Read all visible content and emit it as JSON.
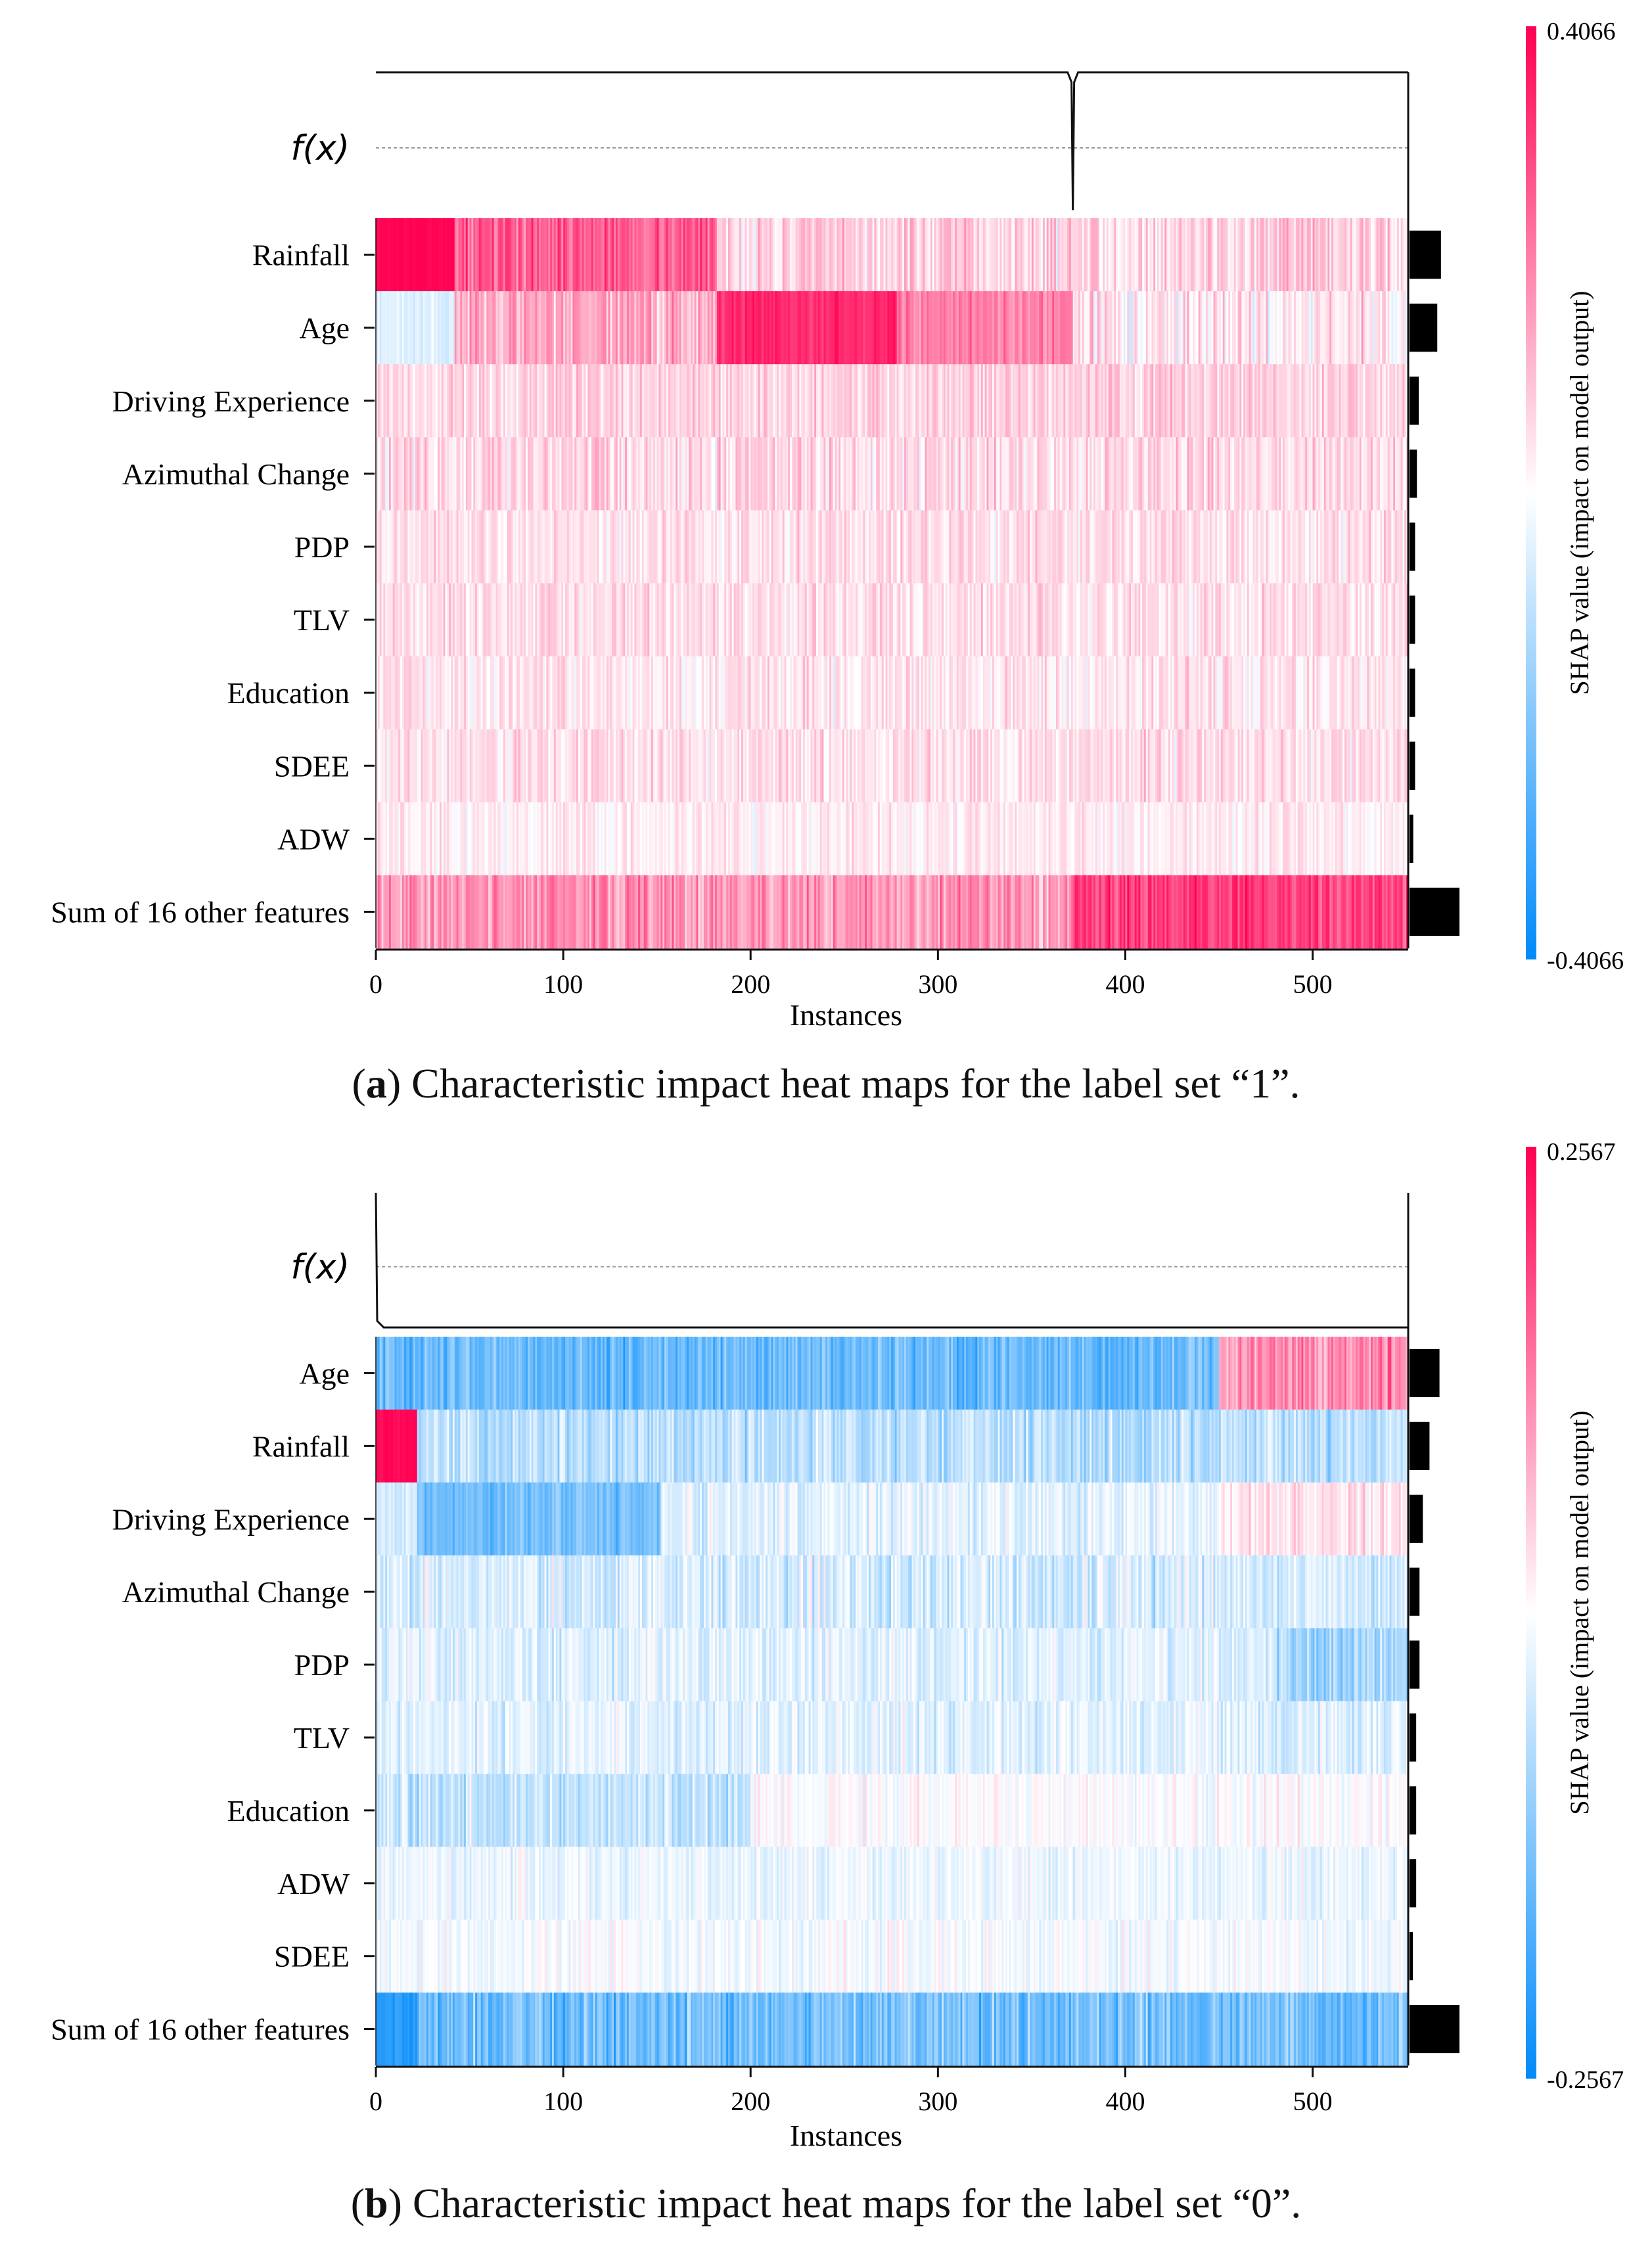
{
  "figure": {
    "captions": [
      {
        "prefix": "(",
        "letter": "a",
        "text": ") Characteristic impact heat maps for the label set “1”."
      },
      {
        "prefix": "(",
        "letter": "b",
        "text": ") Characteristic impact heat maps for the label set “0”."
      }
    ]
  },
  "chart_data": [
    {
      "type": "heatmap",
      "panel": "a",
      "fx_label": "f(x)",
      "xlabel": "Instances",
      "xticks": [
        0,
        100,
        200,
        300,
        400,
        500
      ],
      "xlim": [
        0,
        551
      ],
      "features": [
        "Rainfall",
        "Age",
        "Driving Experience",
        "Azimuthal Change",
        "PDP",
        "TLV",
        "Education",
        "SDEE",
        "ADW",
        "Sum of 16 other features"
      ],
      "mean_abs_importance": [
        0.17,
        0.15,
        0.05,
        0.04,
        0.03,
        0.03,
        0.03,
        0.03,
        0.02,
        0.27
      ],
      "colorbar": {
        "max_label": "0.4066",
        "min_label": "-0.4066",
        "vmax": 0.4066,
        "vmin": -0.4066,
        "label": "SHAP value (impact on model output)"
      },
      "fx_spike_instance": 372,
      "row_profiles": [
        {
          "feature": "Rainfall",
          "segments": [
            {
              "from": 0,
              "to": 42,
              "mean": 0.4,
              "noise": 0.01
            },
            {
              "from": 42,
              "to": 182,
              "mean": 0.26,
              "noise": 0.08
            },
            {
              "from": 182,
              "to": 551,
              "mean": 0.07,
              "noise": 0.08
            }
          ]
        },
        {
          "feature": "Age",
          "segments": [
            {
              "from": 0,
              "to": 42,
              "mean": -0.05,
              "noise": 0.03
            },
            {
              "from": 42,
              "to": 182,
              "mean": 0.14,
              "noise": 0.09
            },
            {
              "from": 182,
              "to": 278,
              "mean": 0.34,
              "noise": 0.04
            },
            {
              "from": 278,
              "to": 372,
              "mean": 0.2,
              "noise": 0.06
            },
            {
              "from": 372,
              "to": 551,
              "mean": 0.04,
              "noise": 0.09
            }
          ]
        },
        {
          "feature": "Driving Experience",
          "segments": [
            {
              "from": 0,
              "to": 551,
              "mean": 0.07,
              "noise": 0.06
            }
          ]
        },
        {
          "feature": "Azimuthal Change",
          "segments": [
            {
              "from": 0,
              "to": 551,
              "mean": 0.06,
              "noise": 0.07
            }
          ]
        },
        {
          "feature": "PDP",
          "segments": [
            {
              "from": 0,
              "to": 551,
              "mean": 0.05,
              "noise": 0.06
            }
          ]
        },
        {
          "feature": "TLV",
          "segments": [
            {
              "from": 0,
              "to": 551,
              "mean": 0.05,
              "noise": 0.06
            }
          ]
        },
        {
          "feature": "Education",
          "segments": [
            {
              "from": 0,
              "to": 551,
              "mean": 0.04,
              "noise": 0.06
            }
          ]
        },
        {
          "feature": "SDEE",
          "segments": [
            {
              "from": 0,
              "to": 551,
              "mean": 0.05,
              "noise": 0.06
            }
          ]
        },
        {
          "feature": "ADW",
          "segments": [
            {
              "from": 0,
              "to": 551,
              "mean": 0.03,
              "noise": 0.05
            }
          ]
        },
        {
          "feature": "Sum of 16 other features",
          "segments": [
            {
              "from": 0,
              "to": 372,
              "mean": 0.17,
              "noise": 0.09
            },
            {
              "from": 372,
              "to": 551,
              "mean": 0.31,
              "noise": 0.08
            }
          ]
        }
      ]
    },
    {
      "type": "heatmap",
      "panel": "b",
      "fx_label": "f(x)",
      "xlabel": "Instances",
      "xticks": [
        0,
        100,
        200,
        300,
        400,
        500
      ],
      "xlim": [
        0,
        551
      ],
      "features": [
        "Age",
        "Rainfall",
        "Driving Experience",
        "Azimuthal Change",
        "PDP",
        "TLV",
        "Education",
        "ADW",
        "SDEE",
        "Sum of 16 other features"
      ],
      "mean_abs_importance": [
        0.09,
        0.06,
        0.04,
        0.03,
        0.03,
        0.02,
        0.02,
        0.02,
        0.01,
        0.15
      ],
      "colorbar": {
        "max_label": "0.2567",
        "min_label": "-0.2567",
        "vmax": 0.2567,
        "vmin": -0.2567,
        "label": "SHAP value (impact on model output)"
      },
      "fx_spike_instance": 0,
      "row_profiles": [
        {
          "feature": "Age",
          "segments": [
            {
              "from": 0,
              "to": 450,
              "mean": -0.15,
              "noise": 0.05
            },
            {
              "from": 450,
              "to": 551,
              "mean": 0.12,
              "noise": 0.06
            }
          ]
        },
        {
          "feature": "Rainfall",
          "segments": [
            {
              "from": 0,
              "to": 22,
              "mean": 0.25,
              "noise": 0.01
            },
            {
              "from": 22,
              "to": 551,
              "mean": -0.07,
              "noise": 0.05
            }
          ]
        },
        {
          "feature": "Driving Experience",
          "segments": [
            {
              "from": 0,
              "to": 22,
              "mean": -0.04,
              "noise": 0.03
            },
            {
              "from": 22,
              "to": 152,
              "mean": -0.14,
              "noise": 0.04
            },
            {
              "from": 152,
              "to": 450,
              "mean": -0.03,
              "noise": 0.04
            },
            {
              "from": 450,
              "to": 551,
              "mean": 0.03,
              "noise": 0.04
            }
          ]
        },
        {
          "feature": "Azimuthal Change",
          "segments": [
            {
              "from": 0,
              "to": 551,
              "mean": -0.04,
              "noise": 0.05
            }
          ]
        },
        {
          "feature": "PDP",
          "segments": [
            {
              "from": 0,
              "to": 480,
              "mean": -0.03,
              "noise": 0.04
            },
            {
              "from": 480,
              "to": 551,
              "mean": -0.09,
              "noise": 0.05
            }
          ]
        },
        {
          "feature": "TLV",
          "segments": [
            {
              "from": 0,
              "to": 551,
              "mean": -0.03,
              "noise": 0.04
            }
          ]
        },
        {
          "feature": "Education",
          "segments": [
            {
              "from": 0,
              "to": 200,
              "mean": -0.06,
              "noise": 0.05
            },
            {
              "from": 200,
              "to": 551,
              "mean": 0.0,
              "noise": 0.03
            }
          ]
        },
        {
          "feature": "ADW",
          "segments": [
            {
              "from": 0,
              "to": 551,
              "mean": -0.02,
              "noise": 0.03
            }
          ]
        },
        {
          "feature": "SDEE",
          "segments": [
            {
              "from": 0,
              "to": 551,
              "mean": -0.01,
              "noise": 0.03
            }
          ]
        },
        {
          "feature": "Sum of 16 other features",
          "segments": [
            {
              "from": 0,
              "to": 22,
              "mean": -0.22,
              "noise": 0.02
            },
            {
              "from": 22,
              "to": 551,
              "mean": -0.14,
              "noise": 0.06
            }
          ]
        }
      ]
    }
  ]
}
